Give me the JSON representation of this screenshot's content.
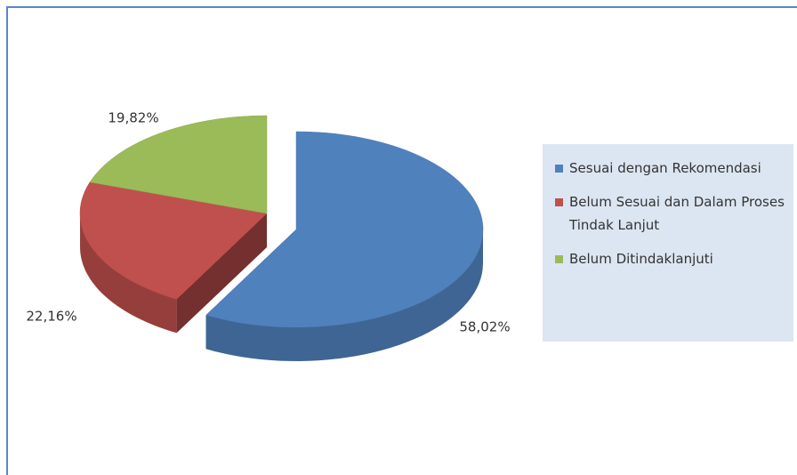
{
  "chart_data": {
    "type": "pie",
    "categories": [
      "Sesuai dengan Rekomendasi",
      "Belum Sesuai dan Dalam Proses Tindak Lanjut",
      "Belum Ditindaklanjuti"
    ],
    "values": [
      58.02,
      22.16,
      19.82
    ],
    "value_labels": [
      "58,02%",
      "22,16%",
      "19,82%"
    ],
    "colors": [
      "#4f81bd",
      "#c0504d",
      "#9bbb59"
    ],
    "legend": "right"
  }
}
